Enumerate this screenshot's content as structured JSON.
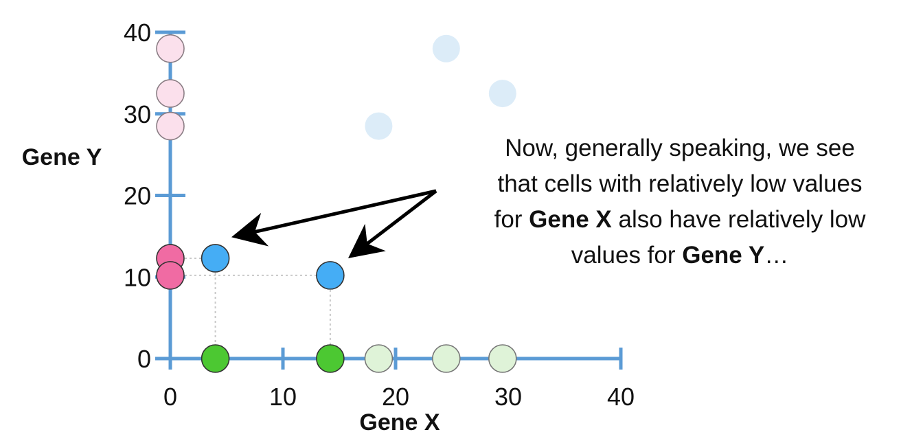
{
  "chart_data": {
    "type": "scatter",
    "xlabel": "Gene X",
    "ylabel": "Gene Y",
    "xlim": [
      0,
      40
    ],
    "ylim": [
      0,
      40
    ],
    "xticks": [
      0,
      10,
      20,
      30,
      40
    ],
    "yticks": [
      0,
      10,
      20,
      30,
      40
    ],
    "colors": {
      "axis": "#5b9bd5",
      "gene_x_highlight": "#4cc832",
      "gene_x_faded": "#dff3d8",
      "gene_y_highlight": "#f06ba3",
      "gene_y_faded": "#fbe0ec",
      "cell_highlight": "#45adf5",
      "cell_faded": "#dcecf8",
      "guide": "#c8c8c8",
      "arrow": "#000000"
    },
    "x_axis_projections": [
      {
        "x": 4,
        "y": 0,
        "highlight": true
      },
      {
        "x": 14.2,
        "y": 0,
        "highlight": true
      },
      {
        "x": 18.5,
        "y": 0,
        "highlight": false
      },
      {
        "x": 24.5,
        "y": 0,
        "highlight": false
      },
      {
        "x": 29.5,
        "y": 0,
        "highlight": false
      }
    ],
    "y_axis_projections": [
      {
        "x": 0,
        "y": 12.3,
        "highlight": true
      },
      {
        "x": 0,
        "y": 10.2,
        "highlight": true
      },
      {
        "x": 0,
        "y": 28.5,
        "highlight": false
      },
      {
        "x": 0,
        "y": 32.5,
        "highlight": false
      },
      {
        "x": 0,
        "y": 38,
        "highlight": false
      }
    ],
    "cells": [
      {
        "x": 4,
        "y": 12.3,
        "highlight": true
      },
      {
        "x": 14.2,
        "y": 10.2,
        "highlight": true
      },
      {
        "x": 18.5,
        "y": 28.5,
        "highlight": false
      },
      {
        "x": 24.5,
        "y": 38,
        "highlight": false
      },
      {
        "x": 29.5,
        "y": 32.5,
        "highlight": false
      }
    ],
    "annotation": {
      "line1": "Now, generally speaking, we see",
      "line2": "that cells with relatively low values",
      "line3_pre": "for ",
      "line3_bold": "Gene X",
      "line3_post": " also have relatively low",
      "line4_pre": "values for ",
      "line4_bold": "Gene Y",
      "line4_post": "…"
    }
  }
}
